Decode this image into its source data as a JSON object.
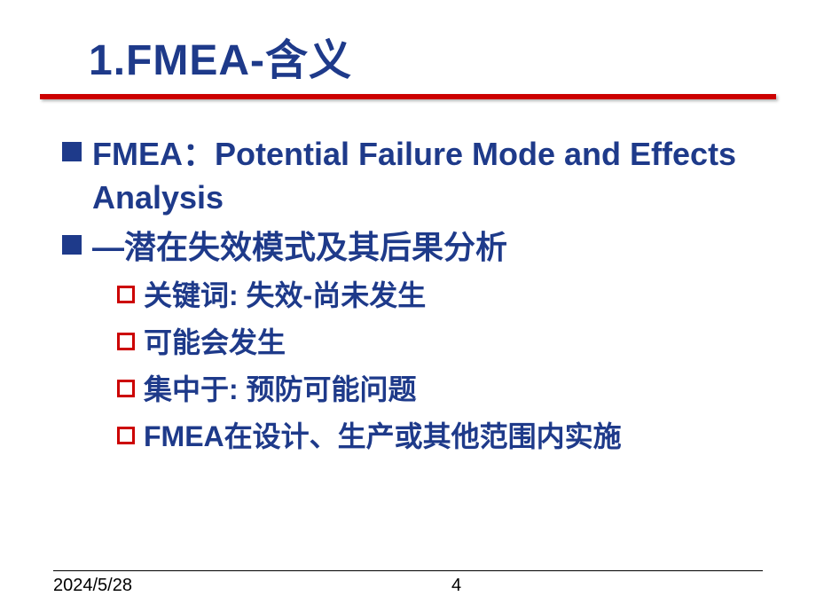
{
  "title": "1.FMEA-含义",
  "colors": {
    "title_color": "#1e3a8a",
    "underline_color": "#cc0000",
    "bullet_square_l1": "#1e3a8a",
    "bullet_square_l2_border": "#cc0000",
    "text_color": "#1e3a8a",
    "background": "#ffffff"
  },
  "typography": {
    "title_fontsize": 48,
    "bullet1_fontsize": 36,
    "bullet2_fontsize": 32,
    "footer_fontsize": 20
  },
  "bullets_l1": [
    "FMEA：Potential Failure Mode and Effects Analysis",
    "—潜在失效模式及其后果分析"
  ],
  "bullets_l2": [
    "关键词: 失效-尚未发生",
    "可能会发生",
    "集中于: 预防可能问题",
    "FMEA在设计、生产或其他范围内实施"
  ],
  "footer": {
    "date": "2024/5/28",
    "page": "4"
  }
}
